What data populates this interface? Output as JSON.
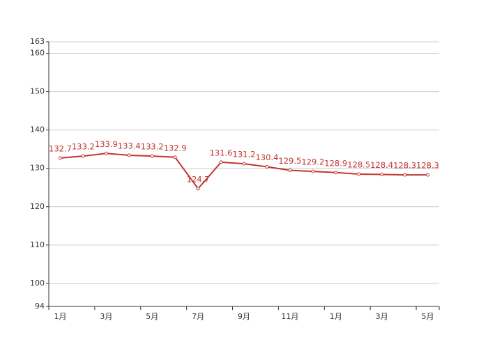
{
  "chart_data": {
    "type": "line",
    "categories": [
      "1月",
      null,
      "3月",
      null,
      "5月",
      null,
      "7月",
      null,
      "9月",
      null,
      "11月",
      null,
      "1月",
      null,
      "3月",
      null,
      "5月"
    ],
    "series": [
      {
        "color": "#c23531",
        "values": [
          132.7,
          133.2,
          133.9,
          133.4,
          133.2,
          132.9,
          124.7,
          131.6,
          131.2,
          130.4,
          129.5,
          129.2,
          128.9,
          128.5,
          128.4,
          128.3,
          128.3
        ]
      }
    ],
    "ylim": [
      94,
      163
    ],
    "yticks": [
      94,
      100,
      110,
      120,
      130,
      140,
      150,
      160,
      163
    ],
    "grid": true
  }
}
